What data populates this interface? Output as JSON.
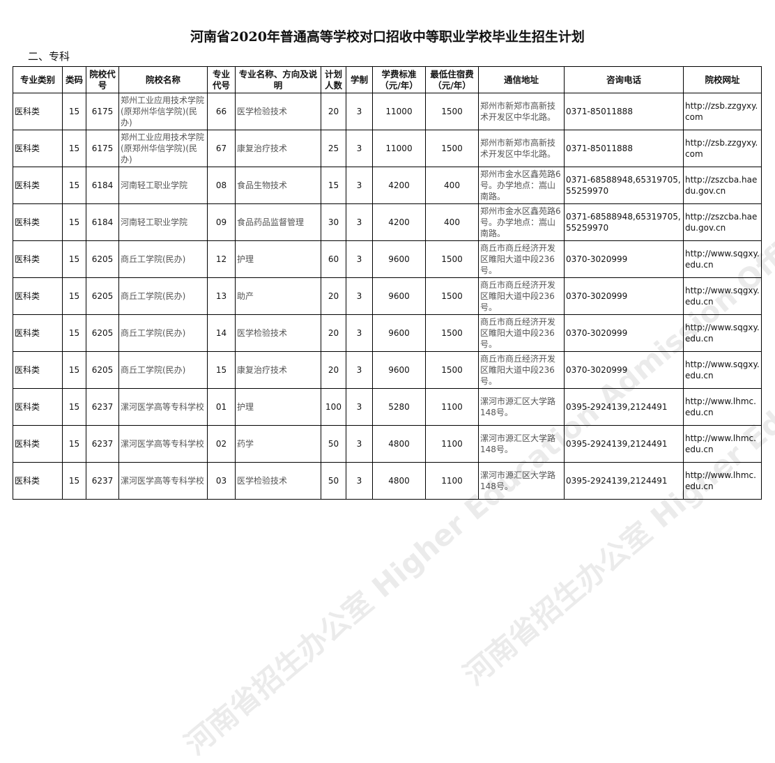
{
  "title": "河南省2020年普通高等学校对口招收中等职业学校毕业生招生计划",
  "section": "二、专科",
  "watermark": "河南省招生办公室 Higher Education Admission Office of HeNan Province",
  "headers": [
    "专业类别",
    "类码",
    "院校代号",
    "院校名称",
    "专业代号",
    "专业名称、方向及说明",
    "计划人数",
    "学制",
    "学费标准（元/年）",
    "最低住宿费（元/年）",
    "通信地址",
    "咨询电话",
    "院校网址"
  ],
  "rows": [
    [
      "医科类",
      "15",
      "6175",
      "郑州工业应用技术学院(原郑州华信学院)(民办)",
      "66",
      "医学检验技术",
      "20",
      "3",
      "11000",
      "1500",
      "郑州市新郑市高新技术开发区中华北路。",
      "0371-85011888",
      "http://zsb.zzgyxy.com"
    ],
    [
      "医科类",
      "15",
      "6175",
      "郑州工业应用技术学院(原郑州华信学院)(民办)",
      "67",
      "康复治疗技术",
      "25",
      "3",
      "11000",
      "1500",
      "郑州市新郑市高新技术开发区中华北路。",
      "0371-85011888",
      "http://zsb.zzgyxy.com"
    ],
    [
      "医科类",
      "15",
      "6184",
      "河南轻工职业学院",
      "08",
      "食品生物技术",
      "15",
      "3",
      "4200",
      "400",
      "郑州市金水区鑫苑路6号。办学地点：嵩山南路。",
      "0371-68588948,65319705,55259970",
      "http://zszcba.haedu.gov.cn"
    ],
    [
      "医科类",
      "15",
      "6184",
      "河南轻工职业学院",
      "09",
      "食品药品监督管理",
      "30",
      "3",
      "4200",
      "400",
      "郑州市金水区鑫苑路6号。办学地点：嵩山南路。",
      "0371-68588948,65319705,55259970",
      "http://zszcba.haedu.gov.cn"
    ],
    [
      "医科类",
      "15",
      "6205",
      "商丘工学院(民办)",
      "12",
      "护理",
      "60",
      "3",
      "9600",
      "1500",
      "商丘市商丘经济开发区睢阳大道中段236号。",
      "0370-3020999",
      "http://www.sqgxy.edu.cn"
    ],
    [
      "医科类",
      "15",
      "6205",
      "商丘工学院(民办)",
      "13",
      "助产",
      "20",
      "3",
      "9600",
      "1500",
      "商丘市商丘经济开发区睢阳大道中段236号。",
      "0370-3020999",
      "http://www.sqgxy.edu.cn"
    ],
    [
      "医科类",
      "15",
      "6205",
      "商丘工学院(民办)",
      "14",
      "医学检验技术",
      "20",
      "3",
      "9600",
      "1500",
      "商丘市商丘经济开发区睢阳大道中段236号。",
      "0370-3020999",
      "http://www.sqgxy.edu.cn"
    ],
    [
      "医科类",
      "15",
      "6205",
      "商丘工学院(民办)",
      "15",
      "康复治疗技术",
      "20",
      "3",
      "9600",
      "1500",
      "商丘市商丘经济开发区睢阳大道中段236号。",
      "0370-3020999",
      "http://www.sqgxy.edu.cn"
    ],
    [
      "医科类",
      "15",
      "6237",
      "漯河医学高等专科学校",
      "01",
      "护理",
      "100",
      "3",
      "5280",
      "1100",
      "漯河市源汇区大学路148号。",
      "0395-2924139,2124491",
      "http://www.lhmc.edu.cn"
    ],
    [
      "医科类",
      "15",
      "6237",
      "漯河医学高等专科学校",
      "02",
      "药学",
      "50",
      "3",
      "4800",
      "1100",
      "漯河市源汇区大学路148号。",
      "0395-2924139,2124491",
      "http://www.lhmc.edu.cn"
    ],
    [
      "医科类",
      "15",
      "6237",
      "漯河医学高等专科学校",
      "03",
      "医学检验技术",
      "50",
      "3",
      "4800",
      "1100",
      "漯河市源汇区大学路148号。",
      "0395-2924139,2124491",
      "http://www.lhmc.edu.cn"
    ]
  ]
}
